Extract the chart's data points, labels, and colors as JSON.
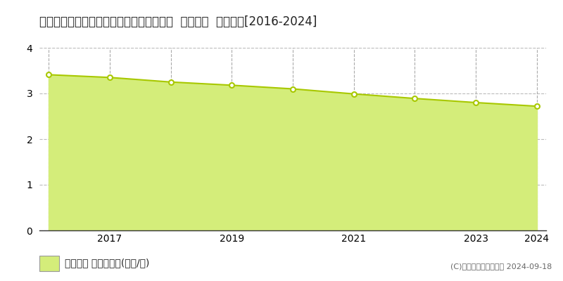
{
  "title": "奈良県吉野郡東吉野村大字木津１６１番１  基準地価  地価推移[2016-2024]",
  "years": [
    2016,
    2017,
    2018,
    2019,
    2020,
    2021,
    2022,
    2023,
    2024
  ],
  "values": [
    3.41,
    3.35,
    3.25,
    3.18,
    3.1,
    2.99,
    2.89,
    2.8,
    2.72
  ],
  "line_color": "#a8c800",
  "fill_color": "#d4ed7a",
  "marker_face": "#ffffff",
  "marker_edge": "#a8c800",
  "background_color": "#ffffff",
  "grid_color_h": "#bbbbbb",
  "grid_color_v": "#aaaaaa",
  "ylim": [
    0,
    4
  ],
  "yticks": [
    0,
    1,
    2,
    3,
    4
  ],
  "xtick_labels": [
    2017,
    2019,
    2021,
    2023,
    2024
  ],
  "legend_label": "基準地価 平均坪単価(万円/坪)",
  "copyright_text": "(C)土地価格ドットコム 2024-09-18",
  "title_fontsize": 12,
  "axis_fontsize": 10,
  "legend_fontsize": 10,
  "copyright_fontsize": 8
}
